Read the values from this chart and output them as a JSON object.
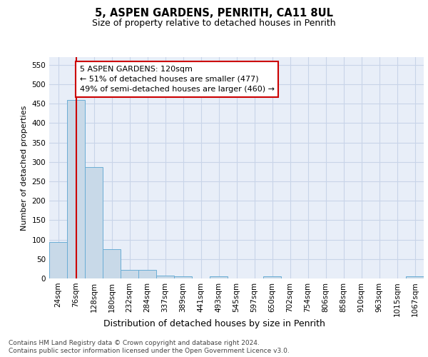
{
  "title1": "5, ASPEN GARDENS, PENRITH, CA11 8UL",
  "title2": "Size of property relative to detached houses in Penrith",
  "xlabel": "Distribution of detached houses by size in Penrith",
  "ylabel": "Number of detached properties",
  "footer1": "Contains HM Land Registry data © Crown copyright and database right 2024.",
  "footer2": "Contains public sector information licensed under the Open Government Licence v3.0.",
  "categories": [
    "24sqm",
    "76sqm",
    "128sqm",
    "180sqm",
    "232sqm",
    "284sqm",
    "337sqm",
    "389sqm",
    "441sqm",
    "493sqm",
    "545sqm",
    "597sqm",
    "650sqm",
    "702sqm",
    "754sqm",
    "806sqm",
    "858sqm",
    "910sqm",
    "963sqm",
    "1015sqm",
    "1067sqm"
  ],
  "values": [
    93,
    460,
    287,
    76,
    22,
    22,
    8,
    6,
    0,
    5,
    0,
    0,
    5,
    0,
    0,
    0,
    0,
    0,
    0,
    0,
    5
  ],
  "bar_color": "#c8d9e8",
  "bar_edge_color": "#6aadd5",
  "marker_bin_index": 1,
  "marker_color": "#cc0000",
  "annotation_text": "5 ASPEN GARDENS: 120sqm\n← 51% of detached houses are smaller (477)\n49% of semi-detached houses are larger (460) →",
  "annotation_box_color": "#ffffff",
  "annotation_box_edge_color": "#cc0000",
  "ylim": [
    0,
    570
  ],
  "yticks": [
    0,
    50,
    100,
    150,
    200,
    250,
    300,
    350,
    400,
    450,
    500,
    550
  ],
  "grid_color": "#c8d4e8",
  "plot_bg_color": "#e8eef8",
  "title1_fontsize": 10.5,
  "title2_fontsize": 9,
  "xlabel_fontsize": 9,
  "ylabel_fontsize": 8,
  "tick_fontsize": 7.5,
  "annotation_fontsize": 8,
  "footer_fontsize": 6.5
}
